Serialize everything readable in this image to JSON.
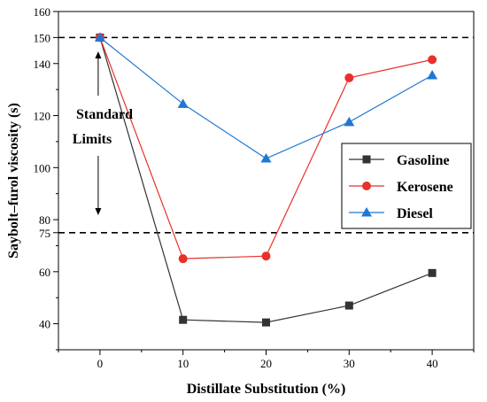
{
  "chart_data": {
    "type": "line",
    "xlabel": "Distillate Substitution (%)",
    "ylabel": "Saybolt–furol viscosity (s)",
    "x": [
      0,
      10,
      20,
      30,
      40
    ],
    "xlim": [
      -5,
      45
    ],
    "ylim": [
      30,
      160
    ],
    "xticks": [
      0,
      10,
      20,
      30,
      40
    ],
    "yticks": [
      40,
      60,
      75,
      80,
      100,
      120,
      140,
      150,
      160
    ],
    "series": [
      {
        "name": "Gasoline",
        "color": "#333333",
        "marker": "square",
        "values": [
          150,
          41.5,
          40.5,
          47,
          59.5
        ]
      },
      {
        "name": "Kerosene",
        "color": "#e8312c",
        "marker": "circle",
        "values": [
          150,
          65,
          66,
          134.5,
          141.5
        ]
      },
      {
        "name": "Diesel",
        "color": "#1f77d4",
        "marker": "triangle",
        "values": [
          150,
          124.5,
          103.5,
          117.5,
          135.5
        ]
      }
    ],
    "reference_lines": [
      150,
      75
    ],
    "annotation": {
      "lines": [
        "Standard",
        "Limits"
      ]
    },
    "legend": {
      "position": "right"
    }
  }
}
